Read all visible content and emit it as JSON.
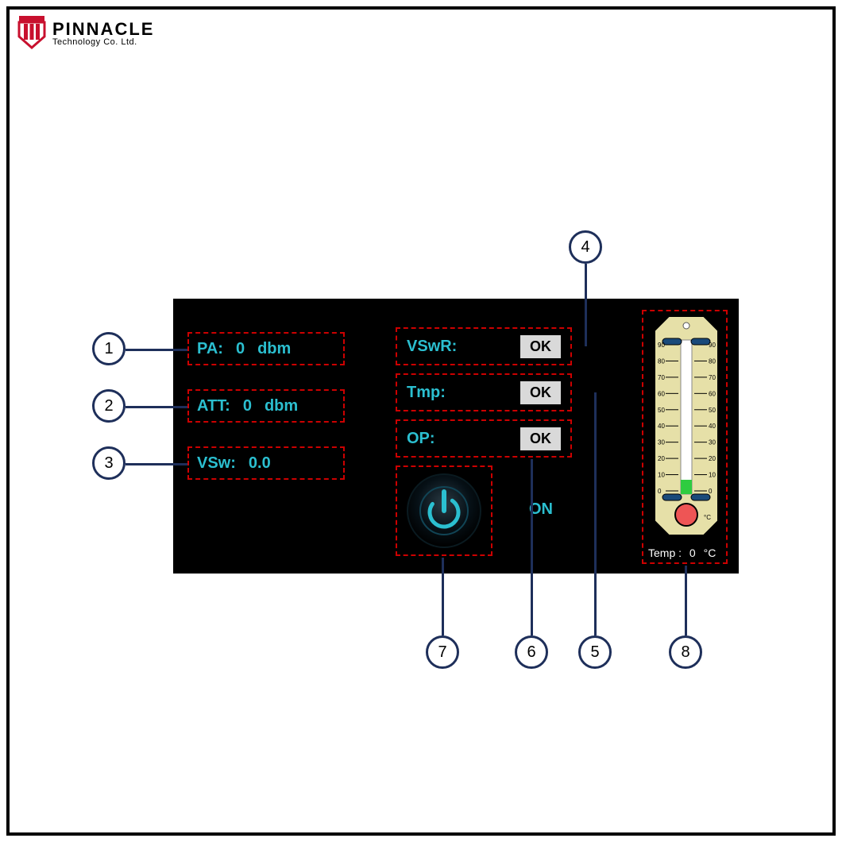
{
  "logo": {
    "line1": "PINNACLE",
    "line2": "Technology Co. Ltd."
  },
  "panel": {
    "bg": "#000000",
    "dashed_color": "#cc0000",
    "text_color": "#2bbfd0",
    "pa": {
      "label": "PA:",
      "value": "0",
      "unit": "dbm"
    },
    "att": {
      "label": "ATT:",
      "value": "0",
      "unit": "dbm"
    },
    "vsw": {
      "label": "VSw:",
      "value": "0.0"
    },
    "vswr": {
      "label": "VSwR:",
      "status": "OK"
    },
    "tmp": {
      "label": "Tmp:",
      "status": "OK"
    },
    "op": {
      "label": "OP:",
      "status": "OK"
    },
    "power_state": "ON",
    "thermometer": {
      "scale_min": 0,
      "scale_max": 90,
      "tick_step": 10,
      "body_color": "#e6e0a8",
      "indicator_color": "#2ecc40",
      "bulb_color": "#ee5555",
      "unit": "°C",
      "readout_label": "Temp :",
      "readout_value": "0"
    }
  },
  "callouts": {
    "c1": "1",
    "c2": "2",
    "c3": "3",
    "c4": "4",
    "c5": "5",
    "c6": "6",
    "c7": "7",
    "c8": "8"
  }
}
